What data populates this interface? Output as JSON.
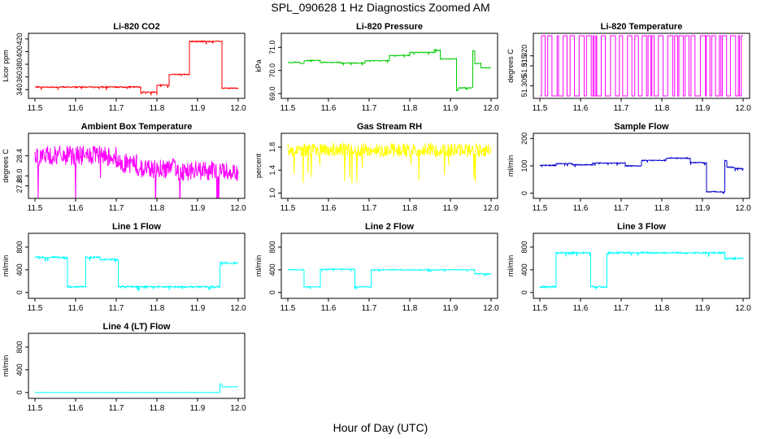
{
  "figure": {
    "title": "SPL_090628  1 Hz Diagnostics Zoomed AM",
    "xlabel": "Hour of Day (UTC)"
  },
  "chart_data": [
    {
      "type": "line",
      "title": "Li-820 CO2",
      "ylabel": "Licor ppm",
      "color": "#ff0000",
      "xlim": [
        11.5,
        12.0
      ],
      "ylim": [
        330,
        425
      ],
      "xticks": [
        "11.5",
        "11.6",
        "11.7",
        "11.8",
        "11.9",
        "12.0"
      ],
      "yticks": [
        "340",
        "360",
        "380",
        "400",
        "420"
      ],
      "noise": 1.0,
      "segments": [
        {
          "x0": 11.5,
          "x1": 11.76,
          "y": 344
        },
        {
          "x0": 11.76,
          "x1": 11.8,
          "y": 336
        },
        {
          "x0": 11.8,
          "x1": 11.83,
          "y": 347
        },
        {
          "x0": 11.83,
          "x1": 11.88,
          "y": 364
        },
        {
          "x0": 11.88,
          "x1": 11.96,
          "y": 416
        },
        {
          "x0": 11.96,
          "x1": 12.0,
          "y": 342
        }
      ]
    },
    {
      "type": "line",
      "title": "Li-820 Pressure",
      "ylabel": "kPa",
      "color": "#00cc00",
      "xlim": [
        11.5,
        12.0
      ],
      "ylim": [
        68.9,
        71.5
      ],
      "xticks": [
        "11.5",
        "11.6",
        "11.7",
        "11.8",
        "11.9",
        "12.0"
      ],
      "yticks": [
        "69.0",
        "70.0",
        "71.0"
      ],
      "noise": 0.02,
      "segments": [
        {
          "x0": 11.5,
          "x1": 11.53,
          "y": 70.35
        },
        {
          "x0": 11.53,
          "x1": 11.54,
          "y": 70.3
        },
        {
          "x0": 11.54,
          "x1": 11.58,
          "y": 70.43
        },
        {
          "x0": 11.58,
          "x1": 11.63,
          "y": 70.35
        },
        {
          "x0": 11.63,
          "x1": 11.69,
          "y": 70.32
        },
        {
          "x0": 11.69,
          "x1": 11.75,
          "y": 70.42
        },
        {
          "x0": 11.75,
          "x1": 11.8,
          "y": 70.65
        },
        {
          "x0": 11.8,
          "x1": 11.86,
          "y": 70.78
        },
        {
          "x0": 11.86,
          "x1": 11.875,
          "y": 70.88
        },
        {
          "x0": 11.875,
          "x1": 11.915,
          "y": 70.5
        },
        {
          "x0": 11.915,
          "x1": 11.92,
          "y": 69.15
        },
        {
          "x0": 11.92,
          "x1": 11.955,
          "y": 69.25
        },
        {
          "x0": 11.955,
          "x1": 11.96,
          "y": 70.85
        },
        {
          "x0": 11.96,
          "x1": 11.975,
          "y": 70.3
        },
        {
          "x0": 11.975,
          "x1": 12.0,
          "y": 70.12
        }
      ]
    },
    {
      "type": "line",
      "title": "Li-820 Temperature",
      "ylabel": "degrees C",
      "color": "#ff00ff",
      "xlim": [
        11.5,
        12.0
      ],
      "ylim": [
        51.3,
        51.33
      ],
      "xticks": [
        "11.5",
        "11.6",
        "11.7",
        "11.8",
        "11.9",
        "12.0"
      ],
      "yticks": [
        "51.305",
        "51.315",
        "51.320"
      ],
      "style": "square-switching",
      "low": 51.3,
      "high": 51.33
    },
    {
      "type": "line",
      "title": "Ambient Box Temperature",
      "ylabel": "degrees C",
      "color": "#ff00ff",
      "xlim": [
        11.5,
        12.0
      ],
      "ylim": [
        27.6,
        28.8
      ],
      "xticks": [
        "11.5",
        "11.6",
        "11.7",
        "11.8",
        "11.9",
        "12.0"
      ],
      "yticks": [
        "27.8",
        "28.0",
        "28.4"
      ],
      "noise": 0.2,
      "segments": [
        {
          "x0": 11.5,
          "x1": 11.7,
          "y": 28.4
        },
        {
          "x0": 11.7,
          "x1": 11.75,
          "y": 28.25
        },
        {
          "x0": 11.75,
          "x1": 11.85,
          "y": 28.15
        },
        {
          "x0": 11.85,
          "x1": 12.0,
          "y": 28.1
        }
      ]
    },
    {
      "type": "line",
      "title": "Gas Stream RH",
      "ylabel": "percent",
      "color": "#ffff00",
      "xlim": [
        11.5,
        12.0
      ],
      "ylim": [
        0.95,
        2.0
      ],
      "xticks": [
        "11.5",
        "11.6",
        "11.7",
        "11.8",
        "11.9",
        "12.0"
      ],
      "yticks": [
        "1.0",
        "1.4",
        "1.8"
      ],
      "noise": 0.12,
      "segments": [
        {
          "x0": 11.5,
          "x1": 12.0,
          "y": 1.75
        }
      ]
    },
    {
      "type": "line",
      "title": "Sample Flow",
      "ylabel": "ml/min",
      "color": "#0000cc",
      "xlim": [
        11.5,
        12.0
      ],
      "ylim": [
        -10,
        210
      ],
      "xticks": [
        "11.5",
        "11.6",
        "11.7",
        "11.8",
        "11.9",
        "12.0"
      ],
      "yticks": [
        "0",
        "100",
        "200"
      ],
      "noise": 2,
      "segments": [
        {
          "x0": 11.5,
          "x1": 11.54,
          "y": 102
        },
        {
          "x0": 11.54,
          "x1": 11.58,
          "y": 108
        },
        {
          "x0": 11.58,
          "x1": 11.63,
          "y": 104
        },
        {
          "x0": 11.63,
          "x1": 11.71,
          "y": 110
        },
        {
          "x0": 11.71,
          "x1": 11.75,
          "y": 100
        },
        {
          "x0": 11.75,
          "x1": 11.81,
          "y": 120
        },
        {
          "x0": 11.81,
          "x1": 11.87,
          "y": 128
        },
        {
          "x0": 11.87,
          "x1": 11.91,
          "y": 112
        },
        {
          "x0": 11.91,
          "x1": 11.955,
          "y": 5
        },
        {
          "x0": 11.955,
          "x1": 11.96,
          "y": 118
        },
        {
          "x0": 11.96,
          "x1": 11.98,
          "y": 95
        },
        {
          "x0": 11.98,
          "x1": 12.0,
          "y": 90
        }
      ]
    },
    {
      "type": "line",
      "title": "Line 1 Flow",
      "ylabel": "ml/min",
      "color": "#00ffff",
      "xlim": [
        11.5,
        12.0
      ],
      "ylim": [
        -60,
        1000
      ],
      "xticks": [
        "11.5",
        "11.6",
        "11.7",
        "11.8",
        "11.9",
        "12.0"
      ],
      "yticks": [
        "0",
        "400",
        "800"
      ],
      "noise": 15,
      "segments": [
        {
          "x0": 11.5,
          "x1": 11.58,
          "y": 620
        },
        {
          "x0": 11.58,
          "x1": 11.625,
          "y": 100
        },
        {
          "x0": 11.625,
          "x1": 11.66,
          "y": 620
        },
        {
          "x0": 11.66,
          "x1": 11.705,
          "y": 580
        },
        {
          "x0": 11.705,
          "x1": 11.955,
          "y": 100
        },
        {
          "x0": 11.955,
          "x1": 12.0,
          "y": 520
        }
      ]
    },
    {
      "type": "line",
      "title": "Line 2 Flow",
      "ylabel": "ml/min",
      "color": "#00ffff",
      "xlim": [
        11.5,
        12.0
      ],
      "ylim": [
        -60,
        1000
      ],
      "xticks": [
        "11.5",
        "11.6",
        "11.7",
        "11.8",
        "11.9",
        "12.0"
      ],
      "yticks": [
        "0",
        "400",
        "800"
      ],
      "noise": 8,
      "segments": [
        {
          "x0": 11.5,
          "x1": 11.54,
          "y": 400
        },
        {
          "x0": 11.54,
          "x1": 11.58,
          "y": 100
        },
        {
          "x0": 11.58,
          "x1": 11.665,
          "y": 410
        },
        {
          "x0": 11.665,
          "x1": 11.705,
          "y": 100
        },
        {
          "x0": 11.705,
          "x1": 11.96,
          "y": 400
        },
        {
          "x0": 11.96,
          "x1": 12.0,
          "y": 330
        }
      ]
    },
    {
      "type": "line",
      "title": "Line 3 Flow",
      "ylabel": "ml/min",
      "color": "#00ffff",
      "xlim": [
        11.5,
        12.0
      ],
      "ylim": [
        -60,
        1000
      ],
      "xticks": [
        "11.5",
        "11.6",
        "11.7",
        "11.8",
        "11.9",
        "12.0"
      ],
      "yticks": [
        "0",
        "400",
        "800"
      ],
      "noise": 15,
      "segments": [
        {
          "x0": 11.5,
          "x1": 11.54,
          "y": 100
        },
        {
          "x0": 11.54,
          "x1": 11.625,
          "y": 700
        },
        {
          "x0": 11.625,
          "x1": 11.665,
          "y": 100
        },
        {
          "x0": 11.665,
          "x1": 11.955,
          "y": 700
        },
        {
          "x0": 11.955,
          "x1": 12.0,
          "y": 600
        }
      ]
    },
    {
      "type": "line",
      "title": "Line 4 (LT) Flow",
      "ylabel": "ml/min",
      "color": "#00ffff",
      "xlim": [
        11.5,
        12.0
      ],
      "ylim": [
        -60,
        1000
      ],
      "xticks": [
        "11.5",
        "11.6",
        "11.7",
        "11.8",
        "11.9",
        "12.0"
      ],
      "yticks": [
        "0",
        "400",
        "800"
      ],
      "noise": 1,
      "segments": [
        {
          "x0": 11.5,
          "x1": 11.955,
          "y": 0
        },
        {
          "x0": 11.955,
          "x1": 11.96,
          "y": 150
        },
        {
          "x0": 11.96,
          "x1": 12.0,
          "y": 100
        }
      ]
    }
  ]
}
